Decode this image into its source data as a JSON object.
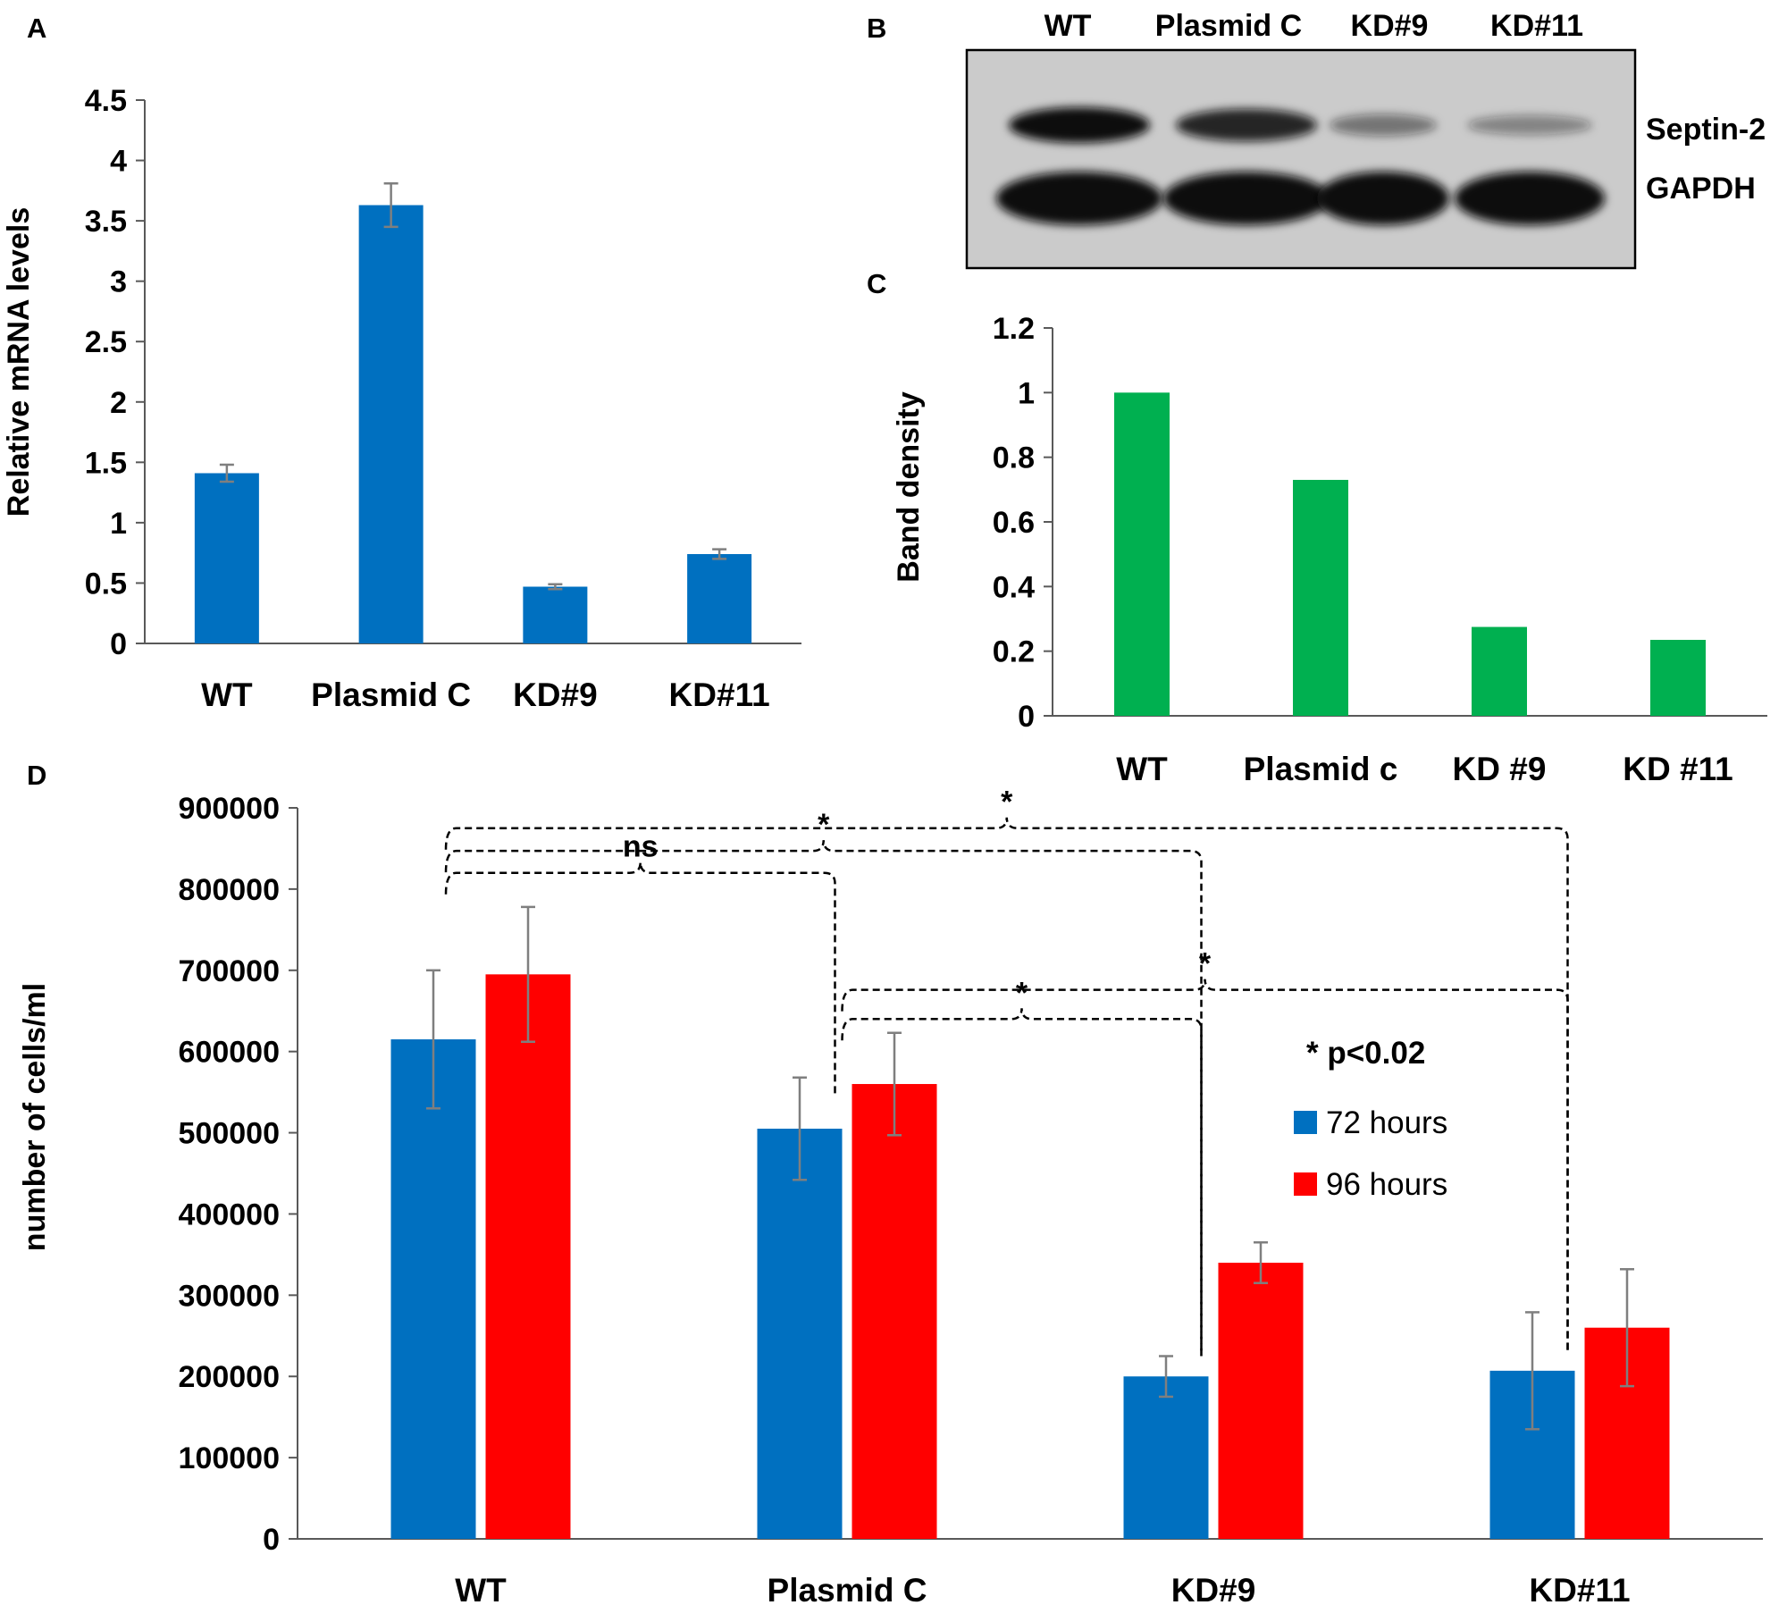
{
  "colors": {
    "bar_blue": "#0070c0",
    "bar_green": "#00b050",
    "bar_red": "#ff0000",
    "error_bar": "#7f7f7f",
    "axis": "#595959",
    "blot_background": "#cbcbcb",
    "band": "#111111"
  },
  "panels": {
    "a": {
      "label": "A"
    },
    "b": {
      "label": "B"
    },
    "c": {
      "label": "C"
    },
    "d": {
      "label": "D"
    }
  },
  "blot": {
    "lanes": [
      "WT",
      "Plasmid C",
      "KD#9",
      "KD#11"
    ],
    "septin_intensity": [
      1.0,
      0.85,
      0.35,
      0.25
    ],
    "gapdh_intensity": [
      1.0,
      1.0,
      1.0,
      1.0
    ],
    "row_labels": [
      "Septin-2",
      "GAPDH"
    ]
  },
  "chart_data": [
    {
      "panel": "A",
      "type": "bar",
      "categories": [
        "WT",
        "Plasmid C",
        "KD#9",
        "KD#11"
      ],
      "series": [
        {
          "values": [
            1.41,
            3.63,
            0.47,
            0.74
          ],
          "errors": [
            0.07,
            0.18,
            0.02,
            0.04
          ]
        }
      ],
      "ylabel": "Relative mRNA levels",
      "ylim": [
        0,
        4.5
      ],
      "yticks": [
        "0",
        "0.5",
        "1",
        "1.5",
        "2",
        "2.5",
        "3",
        "3.5",
        "4",
        "4.5"
      ],
      "grid": false
    },
    {
      "panel": "C",
      "type": "bar",
      "categories": [
        "WT",
        "Plasmid c",
        "KD #9",
        "KD #11"
      ],
      "series": [
        {
          "values": [
            1.0,
            0.73,
            0.275,
            0.235
          ]
        }
      ],
      "ylabel": "Band density",
      "ylim": [
        0,
        1.2
      ],
      "yticks": [
        "0",
        "0.2",
        "0.4",
        "0.6",
        "0.8",
        "1",
        "1.2"
      ],
      "grid": false
    },
    {
      "panel": "D",
      "type": "bar",
      "categories": [
        "WT",
        "Plasmid C",
        "KD#9",
        "KD#11"
      ],
      "series": [
        {
          "name": "72 hours",
          "values": [
            615000,
            505000,
            200000,
            207000
          ],
          "errors": [
            85000,
            63000,
            25000,
            72000
          ]
        },
        {
          "name": "96 hours",
          "values": [
            695000,
            560000,
            340000,
            260000
          ],
          "errors": [
            83000,
            63000,
            25000,
            72000
          ]
        }
      ],
      "ylabel": "number  of cells/ml",
      "ylim": [
        0,
        900000
      ],
      "yticks": [
        "0",
        "100000",
        "200000",
        "300000",
        "400000",
        "500000",
        "600000",
        "700000",
        "800000",
        "900000"
      ],
      "legend": "right",
      "annotation": "* p<0.02",
      "comparisons": [
        {
          "from": "WT",
          "to": "Plasmid C",
          "label": "ns"
        },
        {
          "from": "WT",
          "to": "KD#9",
          "label": "*"
        },
        {
          "from": "WT",
          "to": "KD#11",
          "label": "*"
        },
        {
          "from": "Plasmid C",
          "to": "KD#9",
          "label": "*"
        },
        {
          "from": "Plasmid C",
          "to": "KD#11",
          "label": "*"
        }
      ],
      "grid": false
    }
  ]
}
